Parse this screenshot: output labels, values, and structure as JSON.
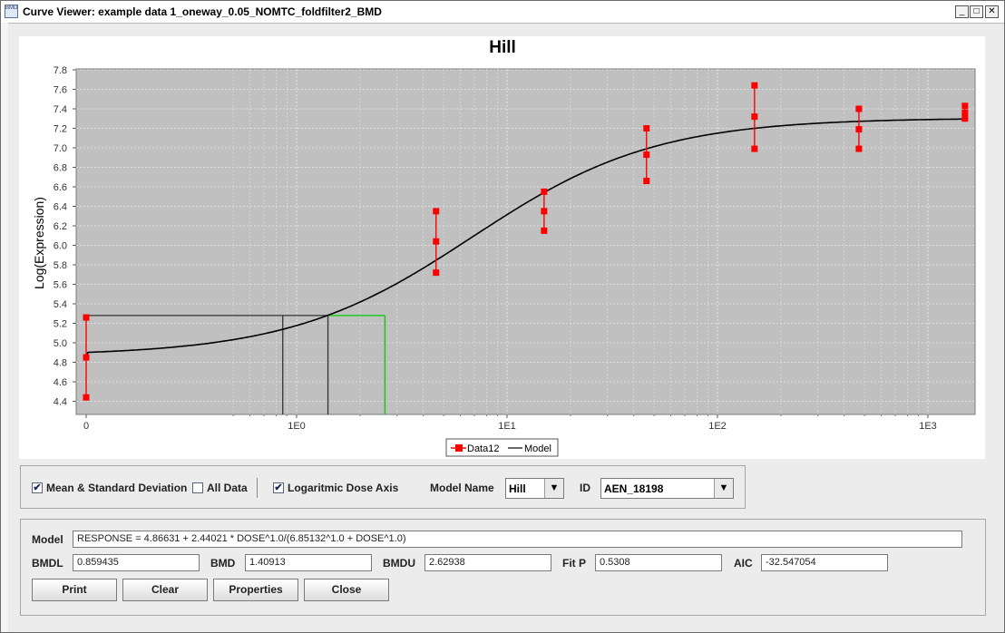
{
  "window": {
    "title": "Curve Viewer: example data 1_oneway_0.05_NOMTC_foldfilter2_BMD",
    "app_icon_text": "BMD",
    "minimize": "_",
    "maximize": "□",
    "close": "✕"
  },
  "chart_data": {
    "type": "scatter",
    "title": "Hill",
    "xlabel": "",
    "ylabel": "Log(Expression)",
    "x_scale": "log",
    "x_tick_labels": [
      "0",
      "1E0",
      "1E1",
      "1E2",
      "1E3"
    ],
    "y_ticks": [
      "4.4",
      "4.6",
      "4.8",
      "5.0",
      "5.2",
      "5.4",
      "5.6",
      "5.8",
      "6.0",
      "6.2",
      "6.4",
      "6.6",
      "6.8",
      "7.0",
      "7.2",
      "7.4",
      "7.6",
      "7.8"
    ],
    "ylim": [
      4.3,
      7.8
    ],
    "background_color": "#c0c0c0",
    "grid": true,
    "legend_position": "bottom-center",
    "series": [
      {
        "name": "Data12",
        "color": "#ff0000",
        "style": "mean ± sd markers",
        "groups": [
          {
            "dose": 0,
            "values": [
              4.44,
              4.85,
              5.26
            ]
          },
          {
            "dose": 4.6,
            "values": [
              5.72,
              6.04,
              6.35
            ]
          },
          {
            "dose": 15,
            "values": [
              6.15,
              6.35,
              6.55
            ]
          },
          {
            "dose": 46,
            "values": [
              6.66,
              6.93,
              7.2
            ]
          },
          {
            "dose": 150,
            "values": [
              6.99,
              7.32,
              7.64
            ]
          },
          {
            "dose": 470,
            "values": [
              6.99,
              7.19,
              7.4
            ]
          },
          {
            "dose": 1500,
            "values": [
              7.3,
              7.36,
              7.43
            ]
          }
        ]
      },
      {
        "name": "Model",
        "color": "#000000",
        "type": "line",
        "equation": "RESPONSE = 4.86631 + 2.44021 * DOSE^1.0/(6.85132^1.0 + DOSE^1.0)"
      }
    ],
    "bmd_markers": {
      "bmdl": 0.859435,
      "bmd": 1.40913,
      "bmdu": 2.62938,
      "response_level": 5.28
    }
  },
  "controls": {
    "mean_sd_label": "Mean & Standard Deviation",
    "mean_sd_checked": "✔",
    "all_data_label": "All Data",
    "all_data_checked": "",
    "log_dose_label": "Logaritmic Dose Axis",
    "log_dose_checked": "✔",
    "model_name_label": "Model Name",
    "model_name_value": "Hill",
    "id_label": "ID",
    "id_value": "AEN_18198",
    "dropdown_arrow": "▼"
  },
  "info": {
    "model_label": "Model",
    "model_value": "RESPONSE = 4.86631 + 2.44021 * DOSE^1.0/(6.85132^1.0 + DOSE^1.0)",
    "bmdl_label": "BMDL",
    "bmdl_value": "0.859435",
    "bmd_label": "BMD",
    "bmd_value": "1.40913",
    "bmdu_label": "BMDU",
    "bmdu_value": "2.62938",
    "fitp_label": "Fit P",
    "fitp_value": "0.5308",
    "aic_label": "AIC",
    "aic_value": "-32.547054"
  },
  "buttons": {
    "print": "Print",
    "clear": "Clear",
    "properties": "Properties",
    "close": "Close"
  }
}
